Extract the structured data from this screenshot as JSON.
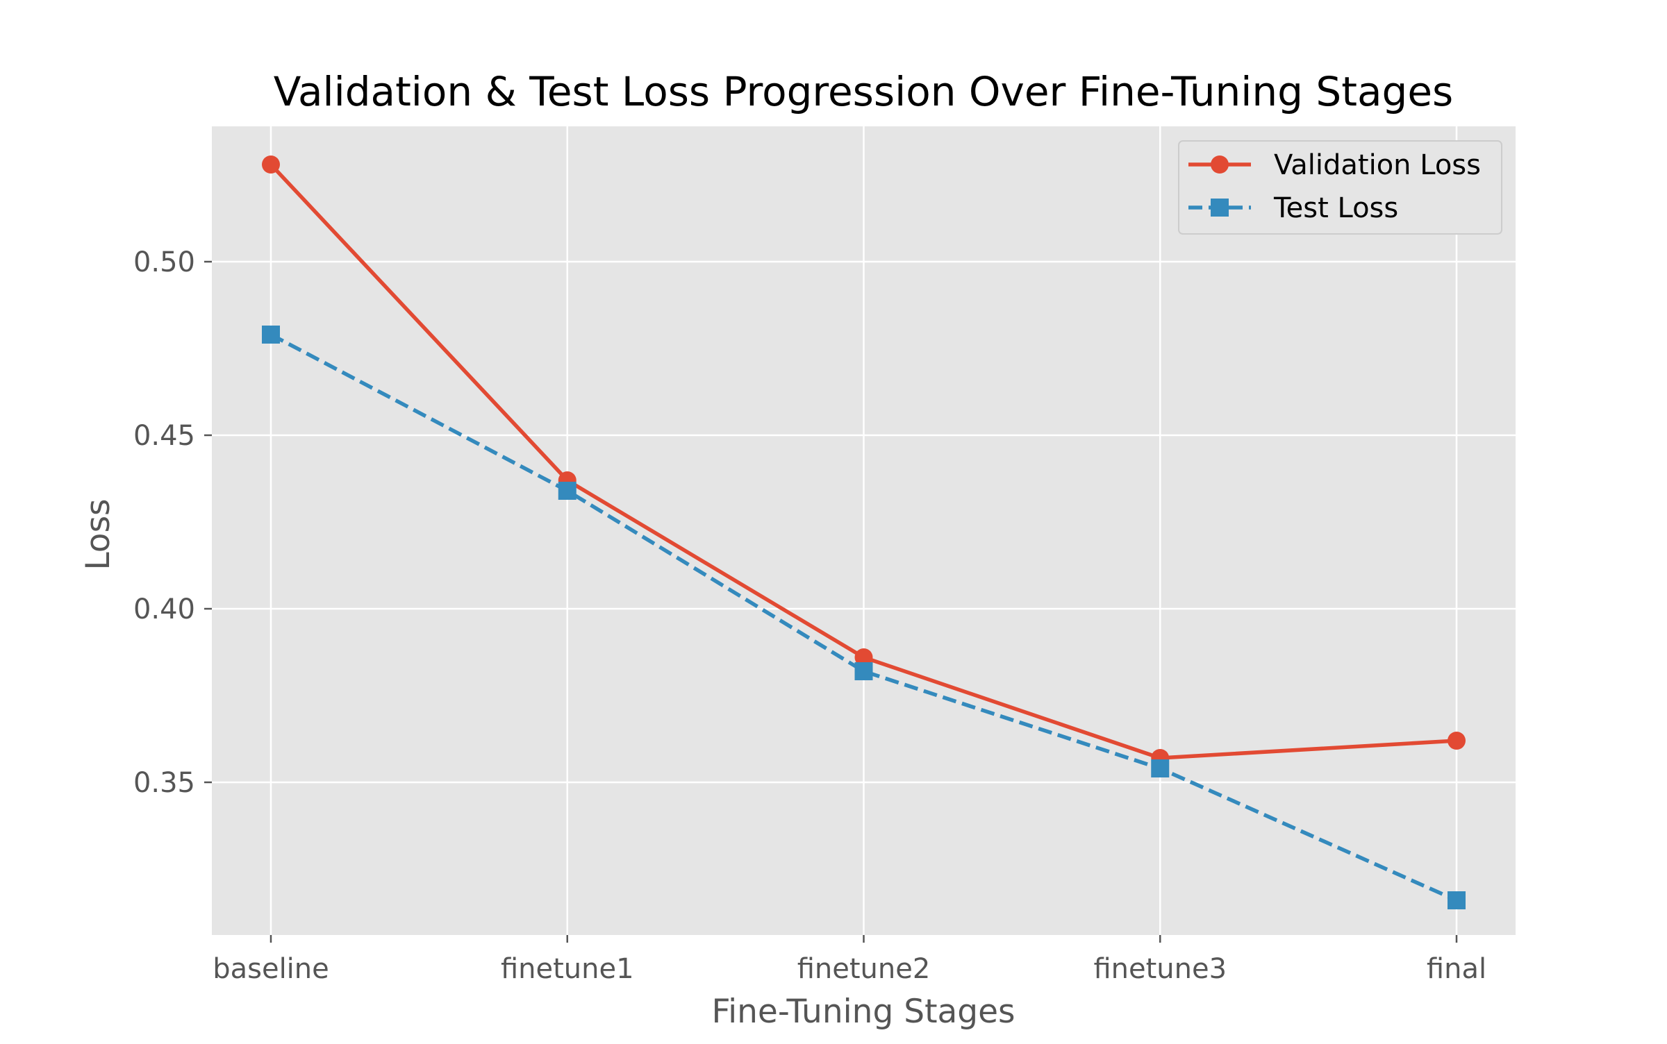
{
  "chart_data": {
    "type": "line",
    "title": "Validation & Test Loss Progression Over Fine-Tuning Stages",
    "xlabel": "Fine-Tuning Stages",
    "ylabel": "Loss",
    "categories": [
      "baseline",
      "finetune1",
      "finetune2",
      "finetune3",
      "final"
    ],
    "ylim": [
      0.306,
      0.539
    ],
    "yticks": [
      0.35,
      0.4,
      0.45,
      0.5
    ],
    "ytick_labels": [
      "0.35",
      "0.40",
      "0.45",
      "0.50"
    ],
    "grid": true,
    "legend_position": "top-right",
    "series": [
      {
        "name": "Validation Loss",
        "values": [
          0.528,
          0.437,
          0.386,
          0.357,
          0.362
        ],
        "color": "#E24A33",
        "line_style": "solid",
        "marker": "circle"
      },
      {
        "name": "Test Loss",
        "values": [
          0.479,
          0.434,
          0.382,
          0.354,
          0.316
        ],
        "color": "#348ABD",
        "line_style": "dashed",
        "marker": "square"
      }
    ],
    "colors": {
      "plot_background": "#E5E5E5",
      "grid": "#FFFFFF",
      "tick_text": "#555555",
      "title_text": "#000000"
    }
  }
}
